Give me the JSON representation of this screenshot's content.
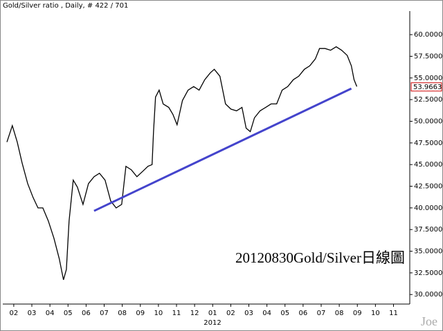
{
  "chart_data": {
    "type": "line",
    "title": "Gold/Silver ratio , Daily, # 422 / 701",
    "annotation": "20120830Gold/Silver日線圖",
    "year_label": "2012",
    "watermark": "Joe",
    "last_value": 53.9663,
    "xlim": [
      1.43,
      23.9
    ],
    "ylim": [
      28.9,
      63.6
    ],
    "xticks": [
      {
        "value": 2,
        "label": "02"
      },
      {
        "value": 3,
        "label": "03"
      },
      {
        "value": 4,
        "label": "04"
      },
      {
        "value": 5,
        "label": "05"
      },
      {
        "value": 6,
        "label": "06"
      },
      {
        "value": 7,
        "label": "07"
      },
      {
        "value": 8,
        "label": "08"
      },
      {
        "value": 9,
        "label": "09"
      },
      10,
      11,
      12,
      {
        "value": 13,
        "label": "01"
      },
      {
        "value": 14,
        "label": "02"
      },
      {
        "value": 15,
        "label": "03"
      },
      {
        "value": 16,
        "label": "04"
      },
      {
        "value": 17,
        "label": "05"
      },
      {
        "value": 18,
        "label": "06"
      },
      {
        "value": 19,
        "label": "07"
      },
      {
        "value": 20,
        "label": "08"
      },
      {
        "value": 21,
        "label": "09"
      },
      {
        "value": 22,
        "label": "10"
      },
      {
        "value": 23,
        "label": "11"
      }
    ],
    "yticks": [
      {
        "value": 30,
        "label": "30.0000"
      },
      {
        "value": 32.5,
        "label": "32.5000"
      },
      {
        "value": 35,
        "label": "35.0000"
      },
      {
        "value": 37.5,
        "label": "37.5000"
      },
      {
        "value": 40,
        "label": "40.0000"
      },
      {
        "value": 42.5,
        "label": "42.5000"
      },
      {
        "value": 45,
        "label": "45.0000"
      },
      {
        "value": 47.5,
        "label": "47.5000"
      },
      {
        "value": 50,
        "label": "50.0000"
      },
      {
        "value": 52.5,
        "label": "52.5000"
      },
      {
        "value": 55,
        "label": "55.0000"
      },
      {
        "value": 57.5,
        "label": "57.5000"
      },
      {
        "value": 60,
        "label": "60.0000"
      }
    ],
    "series": [
      {
        "color": "#000000",
        "x": [
          1.62,
          1.92,
          2.19,
          2.46,
          2.77,
          3.07,
          3.34,
          3.61,
          3.91,
          4.22,
          4.52,
          4.75,
          4.91,
          5.06,
          5.29,
          5.52,
          5.83,
          6.13,
          6.44,
          6.74,
          7.05,
          7.36,
          7.66,
          7.97,
          8.2,
          8.5,
          8.81,
          9.12,
          9.42,
          9.65,
          9.73,
          9.84,
          10.04,
          10.26,
          10.57,
          10.8,
          11.03,
          11.33,
          11.64,
          11.95,
          12.25,
          12.56,
          12.87,
          13.09,
          13.4,
          13.71,
          14.01,
          14.32,
          14.62,
          14.85,
          15.08,
          15.31,
          15.62,
          15.93,
          16.23,
          16.54,
          16.84,
          17.15,
          17.46,
          17.76,
          18.07,
          18.37,
          18.68,
          18.91,
          19.22,
          19.52,
          19.83,
          20.13,
          20.44,
          20.67,
          20.82,
          20.97
        ],
        "values": [
          47.6,
          49.5,
          47.6,
          45.2,
          42.8,
          41.2,
          40,
          40,
          38.5,
          36.5,
          34.1,
          31.7,
          32.9,
          38.5,
          43.2,
          42.4,
          40.4,
          42.8,
          43.6,
          44,
          43.2,
          40.8,
          40,
          40.4,
          44.8,
          44.4,
          43.6,
          44.2,
          44.8,
          45,
          48.8,
          52.8,
          53.6,
          52,
          51.6,
          50.8,
          49.6,
          52.4,
          53.6,
          54,
          53.6,
          54.8,
          55.6,
          56,
          55.2,
          52,
          51.4,
          51.2,
          51.6,
          49.2,
          48.8,
          50.4,
          51.2,
          51.6,
          52,
          52,
          53.6,
          54,
          54.8,
          55.2,
          56,
          56.4,
          57.2,
          58.4,
          58.4,
          58.2,
          58.6,
          58.2,
          57.6,
          56.4,
          54.8,
          54
        ]
      }
    ],
    "trendline": {
      "color": "#4444cc",
      "x": [
        6.44,
        20.67
      ],
      "values": [
        39.65,
        53.78
      ]
    }
  }
}
